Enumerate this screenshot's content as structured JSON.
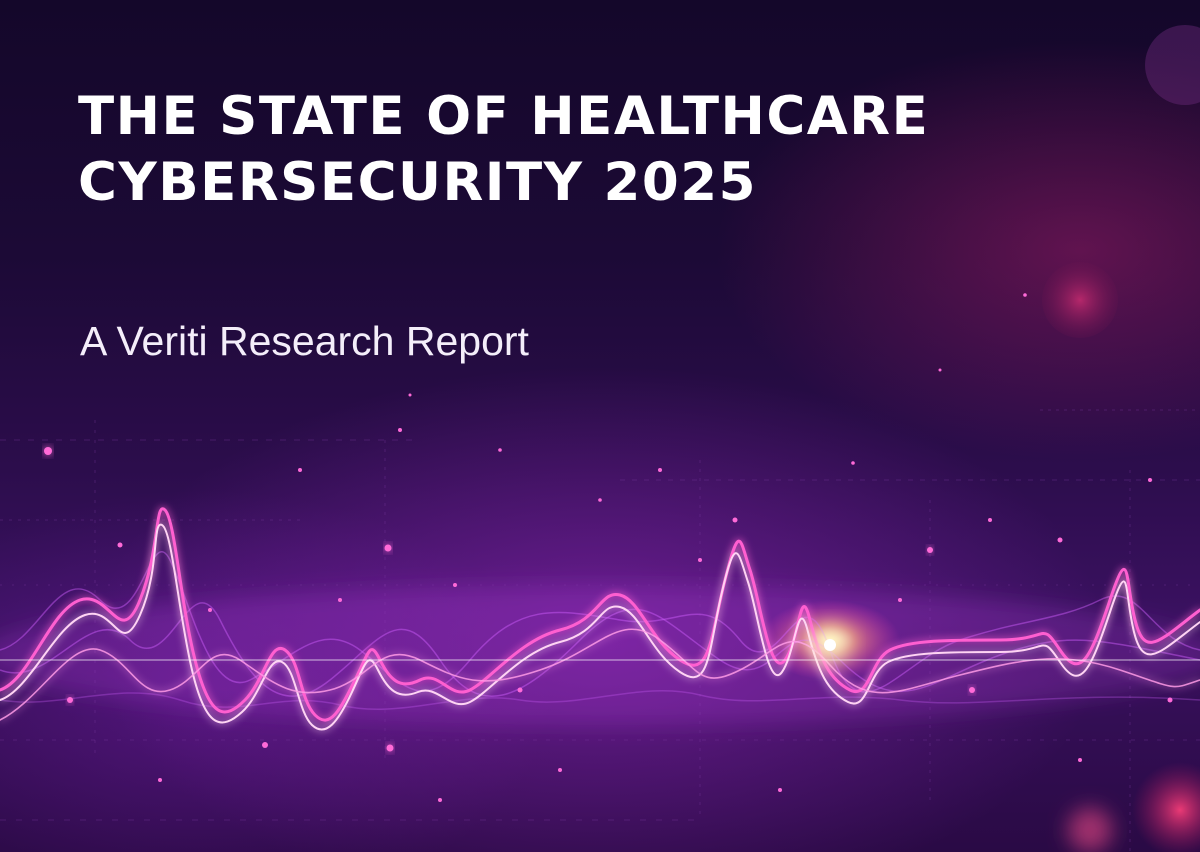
{
  "cover": {
    "title_line1": "THE STATE OF HEALTHCARE",
    "title_line2": "CYBERSECURITY 2025",
    "subtitle": "A Veriti Research Report"
  },
  "colors": {
    "background_top": "#14072a",
    "background_bottom": "#3a1160",
    "accent_pink": "#ff3fb4",
    "accent_violet": "#b04cff",
    "glow_yellow": "#fff2a8",
    "text": "#ffffff"
  },
  "icons": {
    "waveform": "heartbeat-waveform-graphic"
  }
}
